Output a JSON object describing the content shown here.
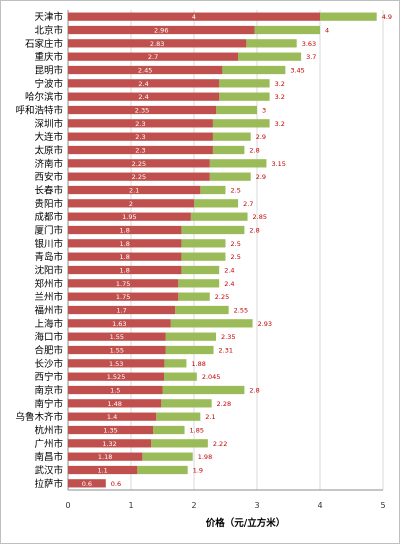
{
  "chart_data": {
    "type": "bar",
    "orientation": "horizontal",
    "stacked": true,
    "xlabel": "价格（元/立方米）",
    "xlim": [
      0,
      5
    ],
    "x_ticks": [
      "0",
      "1",
      "2",
      "3",
      "4",
      "5"
    ],
    "grid": true,
    "legend": "none",
    "colors": {
      "low": "#c0504d",
      "high": "#9bbb59",
      "high_label": "#c00000",
      "low_label": "#ffffff"
    },
    "categories": [
      "天津市",
      "北京市",
      "石家庄市",
      "重庆市",
      "昆明市",
      "宁波市",
      "哈尔滨市",
      "呼和浩特市",
      "深圳市",
      "大连市",
      "太原市",
      "济南市",
      "西安市",
      "长春市",
      "贵阳市",
      "成都市",
      "厦门市",
      "银川市",
      "青岛市",
      "沈阳市",
      "郑州市",
      "兰州市",
      "福州市",
      "上海市",
      "海口市",
      "合肥市",
      "长沙市",
      "西宁市",
      "南京市",
      "南宁市",
      "乌鲁木齐市",
      "杭州市",
      "广州市",
      "南昌市",
      "武汉市",
      "拉萨市"
    ],
    "low_values": [
      4,
      2.96,
      2.83,
      2.7,
      2.45,
      2.4,
      2.4,
      2.35,
      2.3,
      2.3,
      2.3,
      2.25,
      2.25,
      2.1,
      2,
      1.95,
      1.8,
      1.8,
      1.8,
      1.8,
      1.75,
      1.75,
      1.7,
      1.63,
      1.55,
      1.55,
      1.53,
      1.525,
      1.5,
      1.48,
      1.4,
      1.35,
      1.32,
      1.18,
      1.1,
      0.6
    ],
    "low_labels": [
      "4",
      "2.96",
      "2.83",
      "2.7",
      "2.45",
      "2.4",
      "2.4",
      "2.35",
      "2.3",
      "2.3",
      "2.3",
      "2.25",
      "2.25",
      "2.1",
      "2",
      "1.95",
      "1.8",
      "1.8",
      "1.8",
      "1.8",
      "1.75",
      "1.75",
      "1.7",
      "1.63",
      "1.55",
      "1.55",
      "1.53",
      "1.525",
      "1.5",
      "1.48",
      "1.4",
      "1.35",
      "1.32",
      "1.18",
      "1.1",
      "0.6"
    ],
    "high_values": [
      4.9,
      4,
      3.63,
      3.7,
      3.45,
      3.2,
      3.2,
      3,
      3.2,
      2.9,
      2.8,
      3.15,
      2.9,
      2.5,
      2.7,
      2.85,
      2.8,
      2.5,
      2.5,
      2.4,
      2.4,
      2.25,
      2.55,
      2.93,
      2.35,
      2.31,
      1.88,
      2.045,
      2.8,
      2.28,
      2.1,
      1.85,
      2.22,
      1.98,
      1.9,
      0.6
    ],
    "high_labels": [
      "4.9",
      "4",
      "3.63",
      "3.7",
      "3.45",
      "3.2",
      "3.2",
      "3",
      "3.2",
      "2.9",
      "2.8",
      "3.15",
      "2.9",
      "2.5",
      "2.7",
      "2.85",
      "2.8",
      "2.5",
      "2.5",
      "2.4",
      "2.4",
      "2.25",
      "2.55",
      "2.93",
      "2.35",
      "2.31",
      "1.88",
      "2.045",
      "2.8",
      "2.28",
      "2.1",
      "1.85",
      "2.22",
      "1.98",
      "1.9",
      "0.6"
    ]
  }
}
